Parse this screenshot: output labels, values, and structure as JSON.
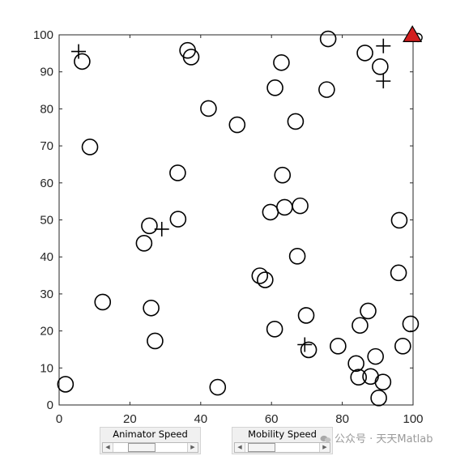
{
  "chart_data": {
    "type": "scatter",
    "title": "",
    "xlabel": "",
    "ylabel": "",
    "xlim": [
      0,
      100
    ],
    "ylim": [
      0,
      100
    ],
    "x_ticks": [
      "0",
      "20",
      "40",
      "60",
      "80",
      "100"
    ],
    "y_ticks": [
      "0",
      "10",
      "20",
      "30",
      "40",
      "50",
      "60",
      "70",
      "80",
      "90",
      "100"
    ],
    "grid": false,
    "series": [
      {
        "marker": "circle",
        "color": "#000000",
        "points": [
          [
            6.5,
            92.8
          ],
          [
            8.7,
            69.7
          ],
          [
            36.3,
            95.8
          ],
          [
            37.3,
            94.0
          ],
          [
            42.2,
            80.1
          ],
          [
            33.5,
            62.7
          ],
          [
            25.5,
            48.4
          ],
          [
            24.0,
            43.7
          ],
          [
            33.6,
            50.2
          ],
          [
            12.3,
            27.8
          ],
          [
            26.0,
            26.2
          ],
          [
            27.1,
            17.3
          ],
          [
            1.8,
            5.6
          ],
          [
            44.8,
            4.8
          ],
          [
            50.3,
            75.7
          ],
          [
            61.0,
            85.7
          ],
          [
            62.8,
            92.5
          ],
          [
            66.8,
            76.6
          ],
          [
            63.1,
            62.1
          ],
          [
            59.7,
            52.1
          ],
          [
            63.7,
            53.4
          ],
          [
            68.1,
            53.8
          ],
          [
            67.3,
            40.2
          ],
          [
            56.7,
            34.9
          ],
          [
            58.2,
            33.8
          ],
          [
            60.9,
            20.5
          ],
          [
            69.8,
            24.2
          ],
          [
            70.5,
            14.9
          ],
          [
            75.6,
            85.2
          ],
          [
            76.0,
            98.9
          ],
          [
            86.4,
            95.1
          ],
          [
            90.7,
            91.4
          ],
          [
            96.1,
            49.9
          ],
          [
            95.9,
            35.7
          ],
          [
            87.3,
            25.4
          ],
          [
            85.0,
            21.5
          ],
          [
            78.8,
            15.9
          ],
          [
            83.9,
            11.2
          ],
          [
            84.6,
            7.5
          ],
          [
            88.0,
            7.7
          ],
          [
            89.4,
            13.1
          ],
          [
            91.5,
            6.2
          ],
          [
            90.3,
            1.9
          ],
          [
            97.1,
            15.9
          ],
          [
            99.3,
            21.9
          ]
        ]
      },
      {
        "marker": "plus",
        "color": "#000000",
        "points": [
          [
            5.5,
            95.5
          ],
          [
            91.6,
            97.0
          ],
          [
            91.6,
            87.5
          ],
          [
            29.0,
            47.5
          ],
          [
            69.4,
            16.3
          ]
        ]
      },
      {
        "marker": "triangle",
        "color": "#d21f1f",
        "points": [
          [
            99.8,
            99.7
          ]
        ]
      }
    ]
  },
  "controls": {
    "animator_speed": {
      "label": "Animator Speed",
      "value": 0.32
    },
    "mobility_speed": {
      "label": "Mobility Speed",
      "value": 0.06
    }
  },
  "watermark": {
    "text": "公众号 · 天天Matlab"
  }
}
